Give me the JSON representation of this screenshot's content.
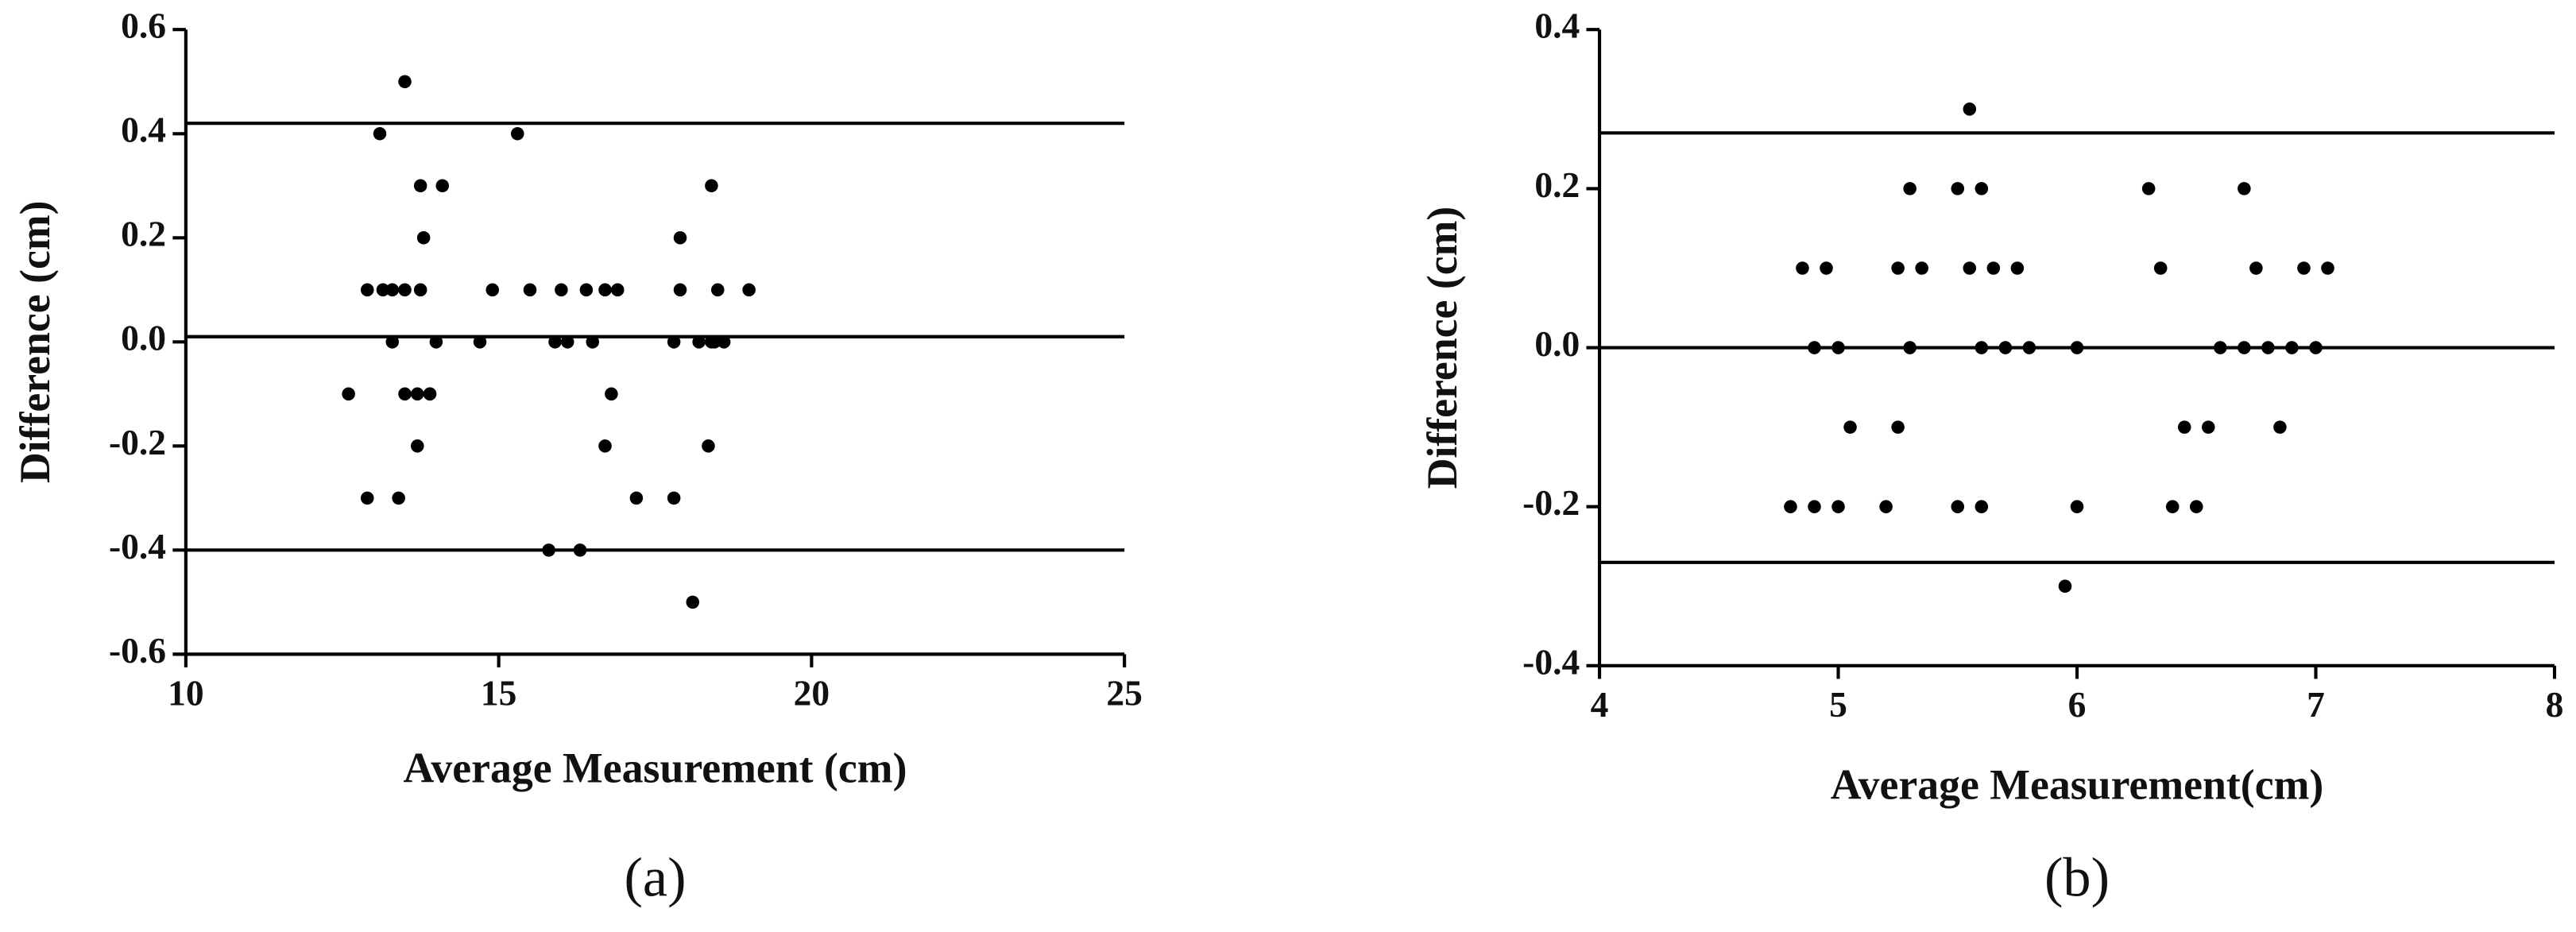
{
  "chart_data": [
    {
      "type": "scatter",
      "caption": "(a)",
      "xlabel": "Average Measurement (cm)",
      "ylabel": "Difference (cm)",
      "xlim": [
        10,
        25
      ],
      "xticks": [
        10,
        15,
        20,
        25
      ],
      "ylim": [
        -0.6,
        0.6
      ],
      "yticks": [
        0.6,
        0.4,
        0.2,
        {
          "value": 0,
          "label": "0.0"
        },
        -0.2,
        -0.4,
        -0.6
      ],
      "hlines": [
        0.42,
        0.01,
        -0.4
      ],
      "color": "#000000",
      "x": [
        12.6,
        12.9,
        12.9,
        13.1,
        13.15,
        13.3,
        13.3,
        13.4,
        13.5,
        13.5,
        13.5,
        13.7,
        13.7,
        13.75,
        13.75,
        13.8,
        13.9,
        13.9,
        14.0,
        14.1,
        14.7,
        14.9,
        15.3,
        15.5,
        15.8,
        15.9,
        16.0,
        16.1,
        16.3,
        16.4,
        16.5,
        16.7,
        16.7,
        16.8,
        16.9,
        17.2,
        17.8,
        17.8,
        17.9,
        17.9,
        18.1,
        18.2,
        18.35,
        18.4,
        18.4,
        18.45,
        18.5,
        18.6,
        19.0
      ],
      "values": [
        -0.1,
        -0.3,
        0.1,
        0.4,
        0.1,
        0.0,
        0.1,
        -0.3,
        0.1,
        0.5,
        -0.1,
        -0.1,
        -0.2,
        0.3,
        0.1,
        0.2,
        -0.1,
        -0.1,
        0.0,
        0.3,
        0.0,
        0.1,
        0.4,
        0.1,
        -0.4,
        0.0,
        0.1,
        0.0,
        -0.4,
        0.1,
        0.0,
        -0.2,
        0.1,
        -0.1,
        0.1,
        -0.3,
        0.0,
        -0.3,
        0.2,
        0.1,
        -0.5,
        0.0,
        -0.2,
        0.0,
        0.3,
        0.0,
        0.1,
        0.0,
        0.1
      ]
    },
    {
      "type": "scatter",
      "caption": "(b)",
      "xlabel": "Average Measurement(cm)",
      "ylabel": "Difference (cm)",
      "xlim": [
        4,
        8
      ],
      "xticks": [
        4,
        5,
        6,
        7,
        8
      ],
      "ylim": [
        -0.4,
        0.4
      ],
      "yticks": [
        0.4,
        0.2,
        {
          "value": 0,
          "label": "0.0"
        },
        -0.2,
        -0.4
      ],
      "hlines": [
        0.27,
        0.0,
        -0.27
      ],
      "color": "#000000",
      "x": [
        4.8,
        4.85,
        4.9,
        4.9,
        4.95,
        5.0,
        5.0,
        5.05,
        5.2,
        5.25,
        5.25,
        5.3,
        5.3,
        5.35,
        5.5,
        5.5,
        5.55,
        5.55,
        5.6,
        5.6,
        5.6,
        5.65,
        5.7,
        5.75,
        5.8,
        5.95,
        6.0,
        6.0,
        6.3,
        6.35,
        6.4,
        6.45,
        6.5,
        6.55,
        6.6,
        6.7,
        6.7,
        6.75,
        6.8,
        6.85,
        6.9,
        6.95,
        7.0,
        7.05
      ],
      "values": [
        -0.2,
        0.1,
        0.0,
        -0.2,
        0.1,
        0.0,
        -0.2,
        -0.1,
        -0.2,
        0.1,
        -0.1,
        0.2,
        0.0,
        0.1,
        -0.2,
        0.2,
        0.3,
        0.1,
        0.2,
        -0.2,
        0.0,
        0.1,
        0.0,
        0.1,
        0.0,
        -0.3,
        0.0,
        -0.2,
        0.2,
        0.1,
        -0.2,
        -0.1,
        -0.2,
        -0.1,
        0.0,
        0.0,
        0.2,
        0.1,
        0.0,
        -0.1,
        0.0,
        0.1,
        0.0,
        0.1
      ]
    }
  ]
}
